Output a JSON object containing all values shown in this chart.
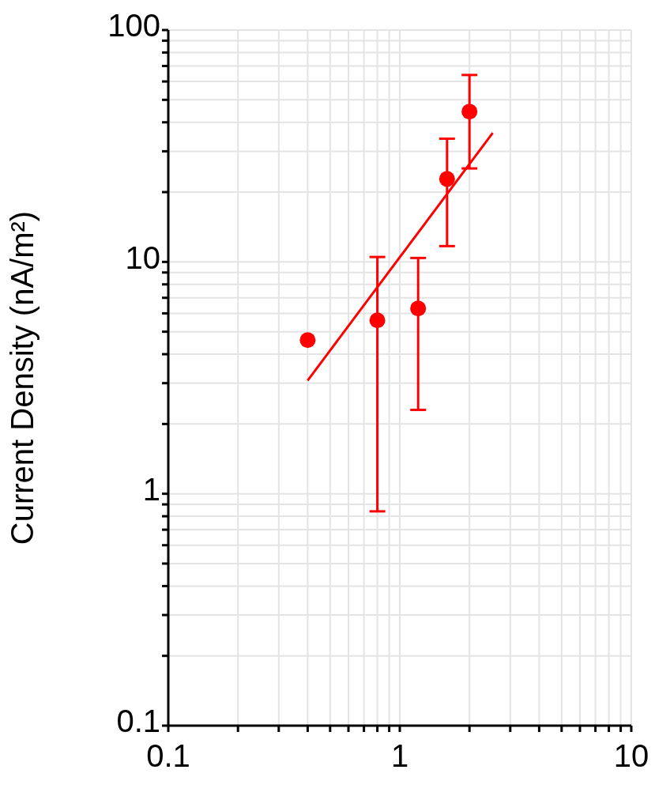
{
  "chart_data": {
    "type": "scatter",
    "ylabel": "Current Density (nA/m²)",
    "log": "xy",
    "xlim": [
      0.1,
      10
    ],
    "ylim": [
      0.1,
      100
    ],
    "xticks": [
      0.1,
      {
        "value": 0.2,
        "label": null
      },
      {
        "value": 0.3,
        "label": null
      },
      {
        "value": 0.4,
        "label": null
      },
      {
        "value": 0.5,
        "label": null
      },
      {
        "value": 0.6,
        "label": null
      },
      {
        "value": 0.7,
        "label": null
      },
      {
        "value": 0.8,
        "label": null
      },
      {
        "value": 0.9,
        "label": null
      },
      1,
      {
        "value": 2,
        "label": null
      },
      {
        "value": 3,
        "label": null
      },
      {
        "value": 4,
        "label": null
      },
      {
        "value": 5,
        "label": null
      },
      {
        "value": 6,
        "label": null
      },
      {
        "value": 7,
        "label": null
      },
      {
        "value": 8,
        "label": null
      },
      {
        "value": 9,
        "label": null
      },
      10
    ],
    "yticks": [
      0.1,
      {
        "value": 0.2,
        "label": null
      },
      {
        "value": 0.3,
        "label": null
      },
      {
        "value": 0.4,
        "label": null
      },
      {
        "value": 0.5,
        "label": null
      },
      {
        "value": 0.6,
        "label": null
      },
      {
        "value": 0.7,
        "label": null
      },
      {
        "value": 0.8,
        "label": null
      },
      {
        "value": 0.9,
        "label": null
      },
      1,
      {
        "value": 2,
        "label": null
      },
      {
        "value": 3,
        "label": null
      },
      {
        "value": 4,
        "label": null
      },
      {
        "value": 5,
        "label": null
      },
      {
        "value": 6,
        "label": null
      },
      {
        "value": 7,
        "label": null
      },
      {
        "value": 8,
        "label": null
      },
      {
        "value": 9,
        "label": null
      },
      10,
      {
        "value": 20,
        "label": null
      },
      {
        "value": 30,
        "label": null
      },
      {
        "value": 40,
        "label": null
      },
      {
        "value": 50,
        "label": null
      },
      {
        "value": 60,
        "label": null
      },
      {
        "value": 70,
        "label": null
      },
      {
        "value": 80,
        "label": null
      },
      {
        "value": 90,
        "label": null
      },
      100
    ],
    "grid": true,
    "marker": "circle",
    "series": [
      {
        "color": "#ff0000",
        "x": [
          0.4,
          0.8,
          1.2,
          1.6,
          2.0
        ],
        "values": [
          4.6,
          5.6,
          6.3,
          22.8,
          44.5
        ],
        "errors": [
          null,
          [
            0.84,
            10.5
          ],
          [
            2.3,
            10.4
          ],
          [
            11.7,
            34
          ],
          [
            25.3,
            64
          ]
        ]
      },
      {
        "type": "line",
        "color": "#ff0000",
        "marker": "none",
        "x": [
          0.4,
          2.52
        ],
        "values": [
          3.08,
          36
        ]
      }
    ]
  }
}
